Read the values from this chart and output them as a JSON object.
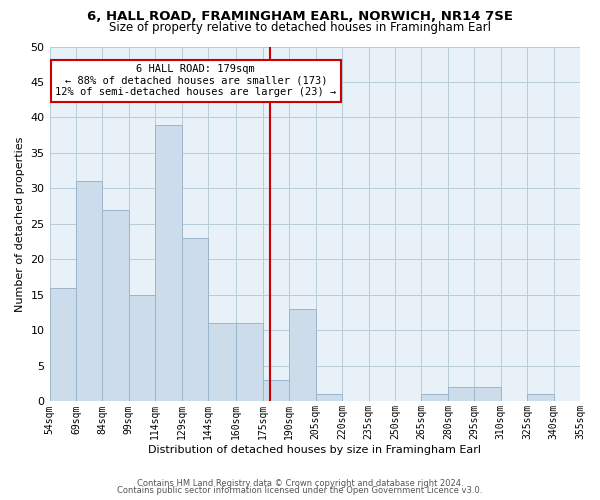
{
  "title": "6, HALL ROAD, FRAMINGHAM EARL, NORWICH, NR14 7SE",
  "subtitle": "Size of property relative to detached houses in Framingham Earl",
  "xlabel": "Distribution of detached houses by size in Framingham Earl",
  "ylabel": "Number of detached properties",
  "bar_color": "#cddceb",
  "bar_edge_color": "#9ab5cc",
  "background_color": "#ffffff",
  "plot_bg_color": "#e8f0f8",
  "grid_color": "#b8ccd8",
  "bins": [
    54,
    69,
    84,
    99,
    114,
    129,
    144,
    160,
    175,
    190,
    205,
    220,
    235,
    250,
    265,
    280,
    295,
    310,
    325,
    340,
    355
  ],
  "bin_labels": [
    "54sqm",
    "69sqm",
    "84sqm",
    "99sqm",
    "114sqm",
    "129sqm",
    "144sqm",
    "160sqm",
    "175sqm",
    "190sqm",
    "205sqm",
    "220sqm",
    "235sqm",
    "250sqm",
    "265sqm",
    "280sqm",
    "295sqm",
    "310sqm",
    "325sqm",
    "340sqm",
    "355sqm"
  ],
  "values": [
    16,
    31,
    27,
    15,
    39,
    23,
    11,
    11,
    3,
    13,
    1,
    0,
    0,
    0,
    1,
    2,
    2,
    0,
    1,
    0
  ],
  "property_value": 179,
  "vline_color": "#cc0000",
  "annotation_title": "6 HALL ROAD: 179sqm",
  "annotation_line1": "← 88% of detached houses are smaller (173)",
  "annotation_line2": "12% of semi-detached houses are larger (23) →",
  "annotation_box_color": "#ffffff",
  "annotation_box_edge_color": "#cc0000",
  "ylim": [
    0,
    50
  ],
  "yticks": [
    0,
    5,
    10,
    15,
    20,
    25,
    30,
    35,
    40,
    45,
    50
  ],
  "footer1": "Contains HM Land Registry data © Crown copyright and database right 2024.",
  "footer2": "Contains public sector information licensed under the Open Government Licence v3.0."
}
